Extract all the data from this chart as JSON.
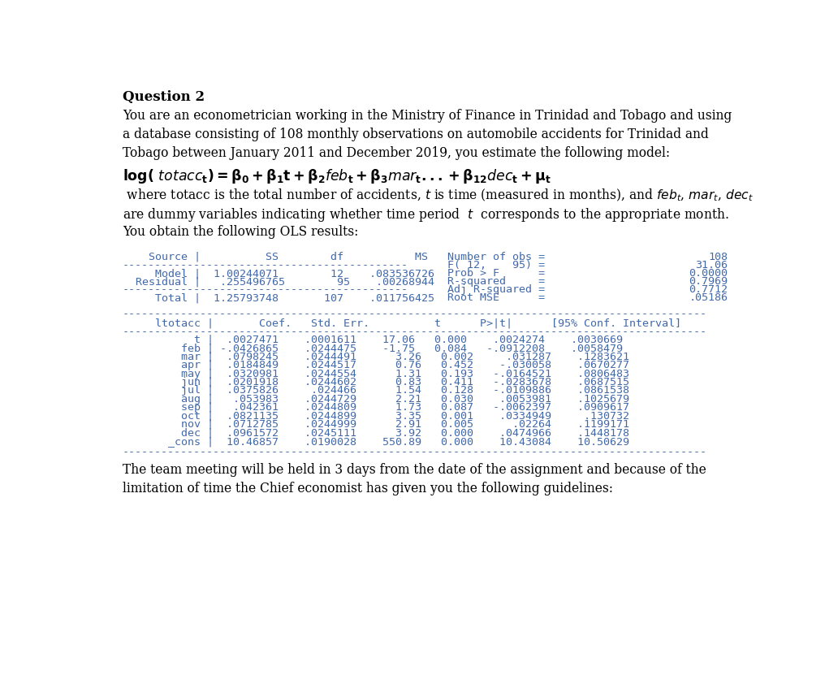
{
  "bg_color": "#ffffff",
  "text_color": "#000000",
  "table_color": "#4169aa",
  "title_text": "Question 2",
  "para1": "You are an econometrician working in the Ministry of Finance in Trinidad and Tobago and using",
  "para2": "a database consisting of 108 monthly observations on automobile accidents for Trinidad and",
  "para3": "Tobago between January 2011 and December 2019, you estimate the following model:",
  "para5": " where totacc is the total number of accidents, ",
  "para6": "are dummy variables indicating whether time period  ",
  "para7": "You obtain the following OLS results:",
  "footer1": "The team meeting will be held in 3 days from the date of the assignment and because of the",
  "footer2": "limitation of time the Chief economist has given you the following guidelines:",
  "stat_labels": [
    "Number of obs =",
    "F( 12,    95) =",
    "Prob > F      =",
    "R-squared     =",
    "Adj R-squared =",
    "Root MSE      ="
  ],
  "stat_vals": [
    "108",
    "31.06",
    "0.0000",
    "0.7969",
    "0.7712",
    ".05186"
  ]
}
